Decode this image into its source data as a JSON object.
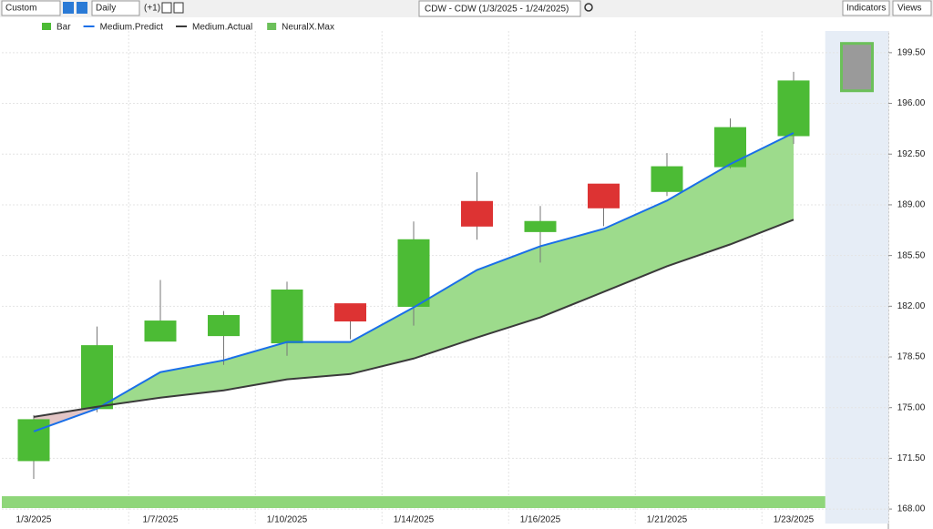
{
  "toolbar": {
    "preset": "Custom",
    "interval": "Daily",
    "offset": "(+1)",
    "symbol": "CDW - CDW (1/3/2025 - 1/24/2025)",
    "indicators": "Indicators",
    "views": "Views"
  },
  "chart_data": {
    "type": "candlestick",
    "categories": [
      "1/3/2025",
      null,
      "1/7/2025",
      null,
      "1/10/2025",
      null,
      "1/14/2025",
      null,
      "1/16/2025",
      null,
      "1/21/2025",
      null,
      "1/23/2025",
      null
    ],
    "ylim": [
      167,
      201
    ],
    "yticks": [
      {
        "value": 168,
        "label": "168.00"
      },
      {
        "value": 171.5,
        "label": "171.50"
      },
      {
        "value": 175,
        "label": "175.00"
      },
      {
        "value": 178.5,
        "label": "178.50"
      },
      {
        "value": 182,
        "label": "182.00"
      },
      {
        "value": 185.5,
        "label": "185.50"
      },
      {
        "value": 189,
        "label": "189.00"
      },
      {
        "value": 192.5,
        "label": "192.50"
      },
      {
        "value": 196,
        "label": "196.00"
      },
      {
        "value": 199.5,
        "label": "199.50"
      }
    ],
    "grid": true,
    "candles": {
      "name": "Bar",
      "up_color": "#4cbb35",
      "down_color": "#dd3333",
      "open": [
        171.34,
        174.93,
        179.59,
        179.97,
        179.47,
        182.17,
        181.99,
        189.23,
        187.15,
        190.43,
        189.92,
        191.63,
        193.77,
        null
      ],
      "high": [
        174.49,
        180.6,
        183.81,
        181.67,
        183.69,
        182.17,
        187.85,
        191.25,
        188.92,
        190.43,
        192.57,
        194.96,
        198.18,
        null
      ],
      "low": [
        170.08,
        174.68,
        179.59,
        177.95,
        178.58,
        179.72,
        180.66,
        186.59,
        185.01,
        187.53,
        189.61,
        191.5,
        193.2,
        null
      ],
      "close": [
        174.17,
        179.28,
        180.98,
        181.36,
        183.12,
        180.98,
        186.59,
        187.53,
        187.85,
        188.79,
        191.63,
        194.33,
        197.55,
        null
      ]
    },
    "series": [
      {
        "name": "Medium.Predict",
        "color": "#1a6fe8",
        "values": [
          173.36,
          174.93,
          177.45,
          178.27,
          179.53,
          179.53,
          181.92,
          184.5,
          186.14,
          187.34,
          189.29,
          191.81,
          193.96,
          null
        ]
      },
      {
        "name": "Medium.Actual",
        "color": "#3a3a3a",
        "values": [
          174.36,
          175.06,
          175.69,
          176.19,
          176.95,
          177.32,
          178.39,
          179.84,
          181.23,
          182.99,
          184.76,
          186.27,
          187.97,
          null
        ]
      }
    ],
    "forecast": {
      "name": "NeuralX.Max",
      "high": [
        null,
        null,
        null,
        null,
        null,
        null,
        null,
        null,
        null,
        null,
        null,
        null,
        null,
        200.14
      ],
      "low": [
        null,
        null,
        null,
        null,
        null,
        null,
        null,
        null,
        null,
        null,
        null,
        null,
        null,
        196.87
      ]
    }
  }
}
